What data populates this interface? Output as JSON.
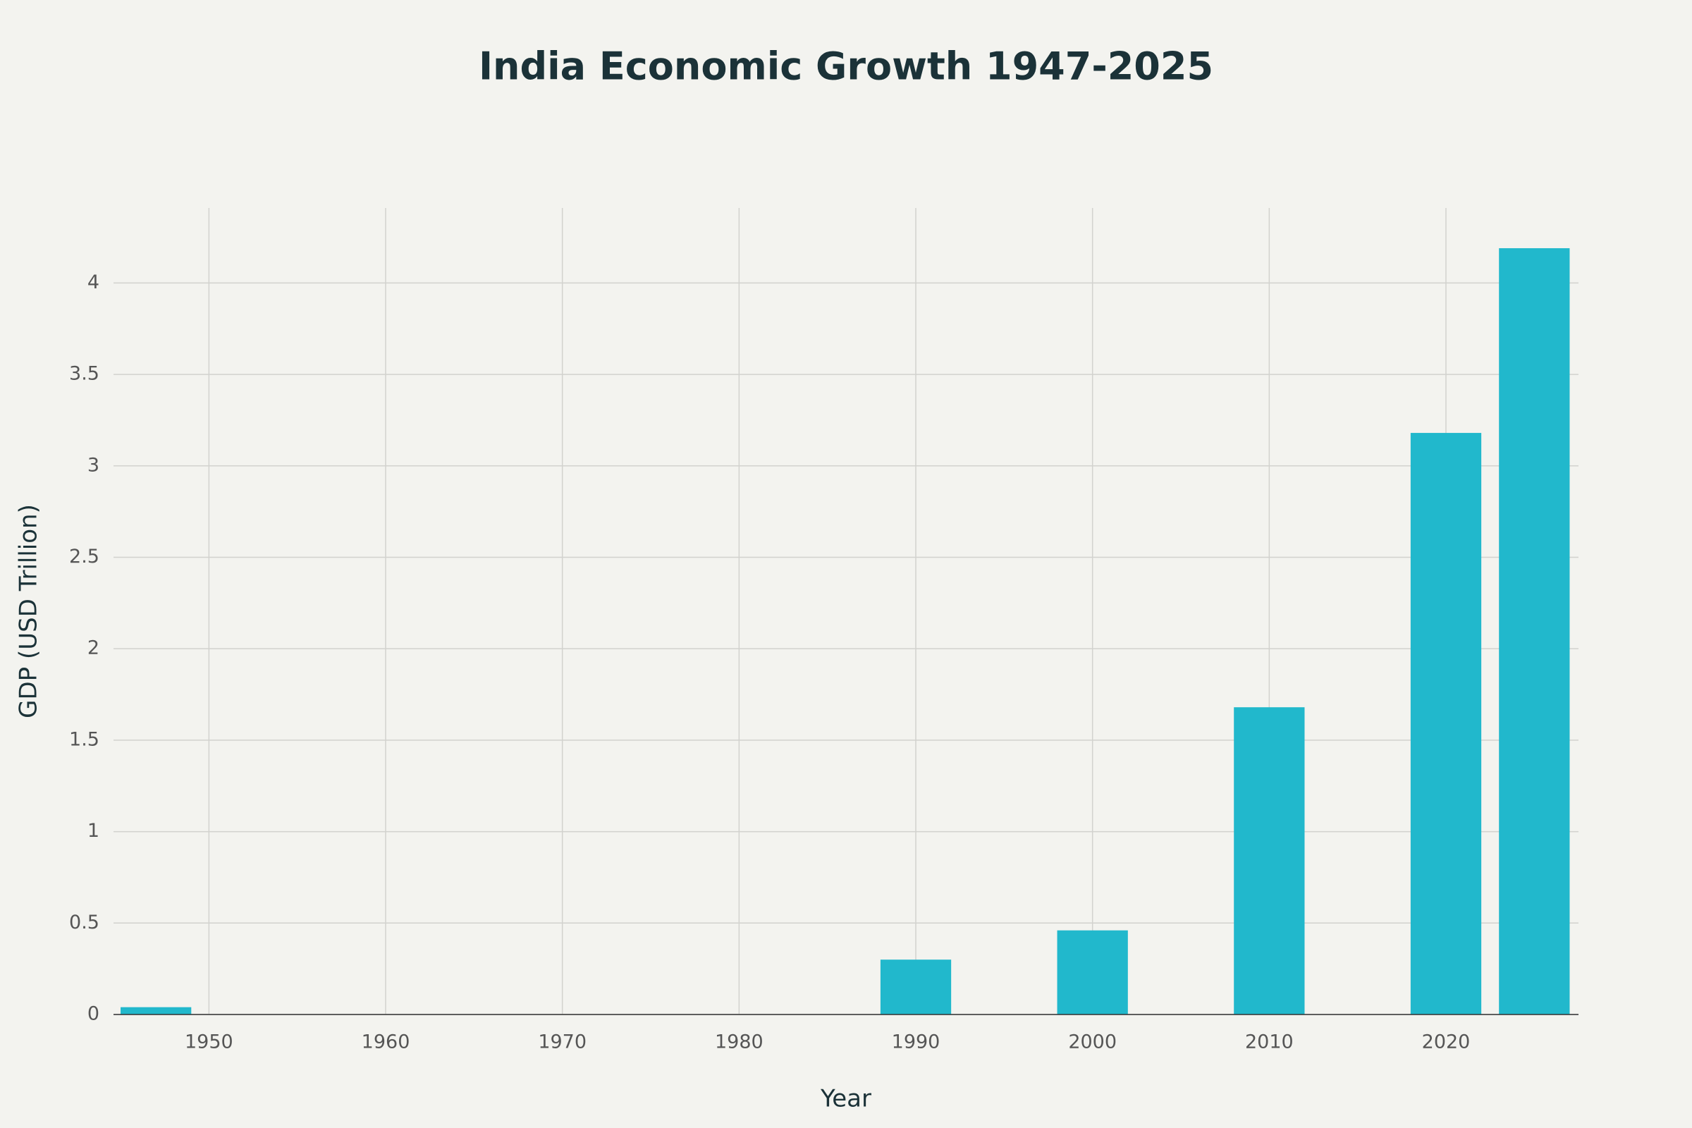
{
  "chart_data": {
    "type": "bar",
    "title": "India Economic Growth 1947-2025",
    "x_label": "Year",
    "y_label": "GDP (USD Trillion)",
    "x": [
      1947,
      1990,
      2000,
      2010,
      2020,
      2025
    ],
    "values": [
      0.04,
      0.3,
      0.46,
      1.68,
      3.18,
      4.19
    ],
    "color": "#21b8cc",
    "xlim": [
      1944.6,
      2027.5
    ],
    "xticks": [
      1950,
      1960,
      1970,
      1980,
      1990,
      2000,
      2010,
      2020
    ],
    "ylim": [
      0,
      4.41
    ],
    "yticks": [
      0,
      0.5,
      1,
      1.5,
      2,
      2.5,
      3,
      3.5,
      4
    ],
    "grid": true
  }
}
